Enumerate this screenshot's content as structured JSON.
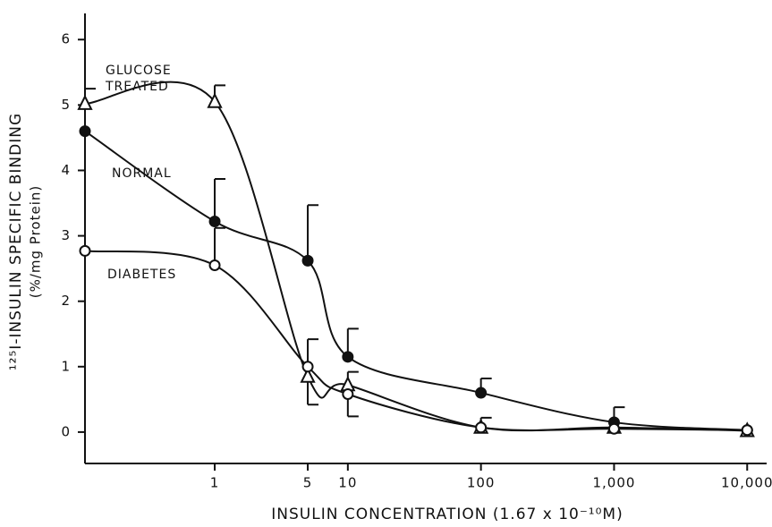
{
  "chart_data": {
    "type": "scatter",
    "xlabel": "INSULIN CONCENTRATION (1.67 x 10⁻¹⁰M)",
    "ylabel": "¹²⁵I-INSULIN SPECIFIC BINDING",
    "ylabel2": "(%/mg Protein)",
    "log_x": true,
    "x": [
      0.106,
      1,
      5,
      10,
      100,
      1000,
      10000
    ],
    "xlim": [
      0.106,
      14000
    ],
    "xticks": [
      1,
      5,
      10,
      100,
      {
        "value": 1000,
        "label": "1,000"
      },
      {
        "value": 10000,
        "label": "10,000"
      }
    ],
    "ylim": [
      -0.48,
      6.4
    ],
    "yticks": [
      0,
      1,
      2,
      3,
      4,
      5,
      6
    ],
    "series": [
      {
        "name": "GLUCOSE TREATED",
        "color": "#111111",
        "marker": "open-triangle",
        "values": [
          5.02,
          5.05,
          0.85,
          0.72,
          0.07,
          0.07,
          0.02
        ],
        "errors_up": [
          0.23,
          0.25,
          null,
          0.2,
          0.15,
          null,
          null
        ],
        "errors_down": [
          null,
          null,
          0.43,
          null,
          null,
          null,
          null
        ]
      },
      {
        "name": "NORMAL",
        "color": "#111111",
        "marker": "filled-circle",
        "values": [
          4.6,
          3.22,
          2.62,
          1.15,
          0.6,
          0.15,
          0.03
        ],
        "errors_up": [
          null,
          0.65,
          0.85,
          0.43,
          0.22,
          0.23,
          null
        ],
        "errors_down": [
          null,
          null,
          null,
          null,
          null,
          null,
          null
        ]
      },
      {
        "name": "DIABETES",
        "color": "#111111",
        "marker": "open-circle",
        "values": [
          2.77,
          2.55,
          1.0,
          0.58,
          0.07,
          0.05,
          0.03
        ],
        "errors_up": [
          null,
          0.57,
          0.42,
          null,
          null,
          null,
          null
        ],
        "errors_down": [
          null,
          null,
          null,
          0.34,
          null,
          null,
          null
        ]
      }
    ]
  }
}
